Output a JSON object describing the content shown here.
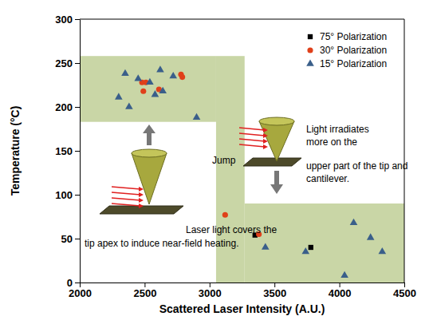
{
  "chart_data": {
    "type": "scatter",
    "x_label": "Scattered Laser Intensity (A.U.)",
    "y_label": "Temperature (°C)",
    "xlim": [
      2000,
      4500
    ],
    "xticks": [
      2000,
      2500,
      3000,
      3500,
      4000,
      4500
    ],
    "ylim": [
      0,
      300
    ],
    "yticks": [
      0,
      50,
      100,
      150,
      200,
      250,
      300
    ],
    "legend": "upper right",
    "series": [
      {
        "name": "75° Polarization",
        "color": "#000000",
        "marker": "square",
        "x": [
          3350,
          3780
        ],
        "values": [
          54,
          40
        ]
      },
      {
        "name": "30° Polarization",
        "color": "#e0401a",
        "marker": "circle",
        "x": [
          2480,
          2510,
          2490,
          2610,
          2780,
          2790,
          3120,
          3380
        ],
        "values": [
          228,
          228,
          218,
          220,
          237,
          234,
          77,
          55
        ]
      },
      {
        "name": "15° Polarization",
        "color": "#3a5f8a",
        "marker": "triangle",
        "x": [
          2300,
          2350,
          2380,
          2450,
          2540,
          2580,
          2620,
          2640,
          2720,
          2900,
          3430,
          3740,
          4040,
          4110,
          4240,
          4330
        ],
        "values": [
          211,
          238,
          200,
          232,
          228,
          214,
          242,
          218,
          235,
          188,
          40,
          35,
          8,
          68,
          51,
          35
        ]
      }
    ],
    "regions": [
      {
        "x": [
          2000,
          3050
        ],
        "y": [
          183,
          258
        ],
        "color": "#c9d6a6"
      },
      {
        "x": [
          3050,
          3270
        ],
        "y": [
          0,
          258
        ],
        "color": "#c9d6a6"
      },
      {
        "x": [
          3270,
          4500
        ],
        "y": [
          0,
          90
        ],
        "color": "#c9d6a6"
      }
    ],
    "annotations": [
      {
        "lines": [
          "Jump"
        ]
      },
      {
        "lines": [
          "Laser light covers the",
          "tip apex to induce near-field heating."
        ]
      },
      {
        "lines": [
          "Light irradiates",
          "more on the",
          "upper part of the tip and",
          "cantilever."
        ]
      }
    ]
  }
}
